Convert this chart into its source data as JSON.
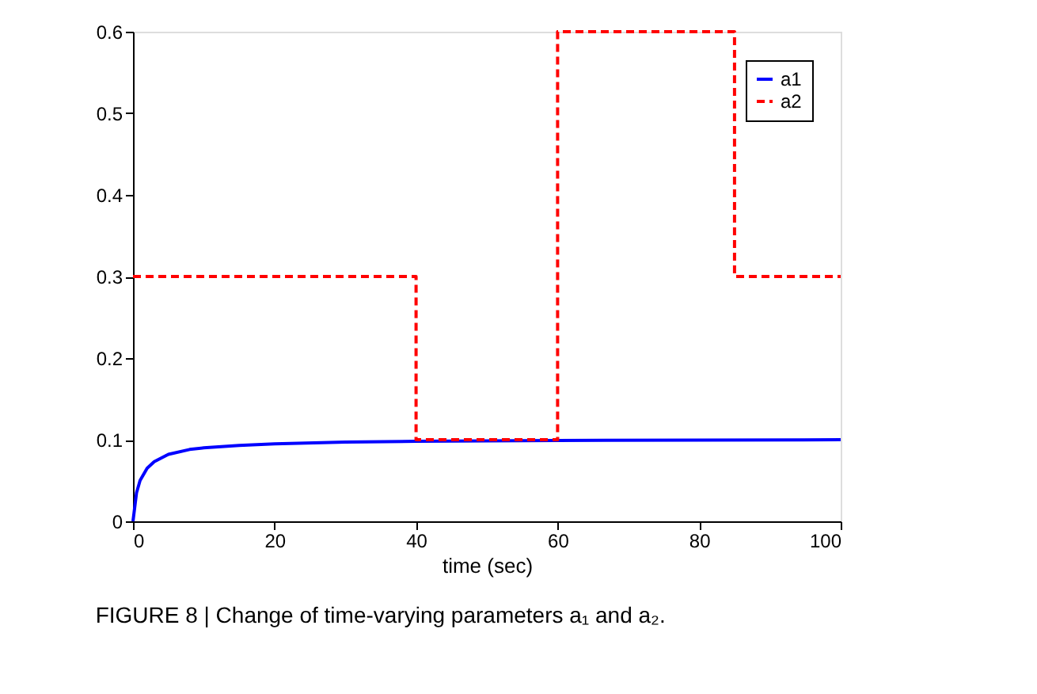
{
  "chart_data": {
    "type": "line",
    "title": "FIGURE 8 | Change of time-varying parameters a₁ and a₂.",
    "xlabel": "time (sec)",
    "xlim": [
      0,
      100
    ],
    "xticks": [
      0,
      20,
      40,
      60,
      80,
      100
    ],
    "ylim": [
      0,
      0.6
    ],
    "yticks": [
      0,
      0.1,
      0.2,
      0.3,
      0.4,
      0.5,
      0.6
    ],
    "grid": false,
    "legend": "top right",
    "series": [
      {
        "name": "a1",
        "color": "#0000ff",
        "line_style": "solid",
        "x": [
          0,
          0.5,
          1,
          2,
          3,
          5,
          8,
          10,
          15,
          20,
          30,
          40,
          60,
          100
        ],
        "values": [
          0,
          0.035,
          0.05,
          0.065,
          0.073,
          0.082,
          0.088,
          0.09,
          0.093,
          0.095,
          0.097,
          0.098,
          0.099,
          0.1
        ]
      },
      {
        "name": "a2",
        "color": "#ff0000",
        "type": "step",
        "line_style": "dashed",
        "x": [
          0,
          40,
          60,
          85,
          100
        ],
        "values": [
          0.3,
          0.1,
          0.6,
          0.3,
          0.3
        ]
      }
    ]
  }
}
